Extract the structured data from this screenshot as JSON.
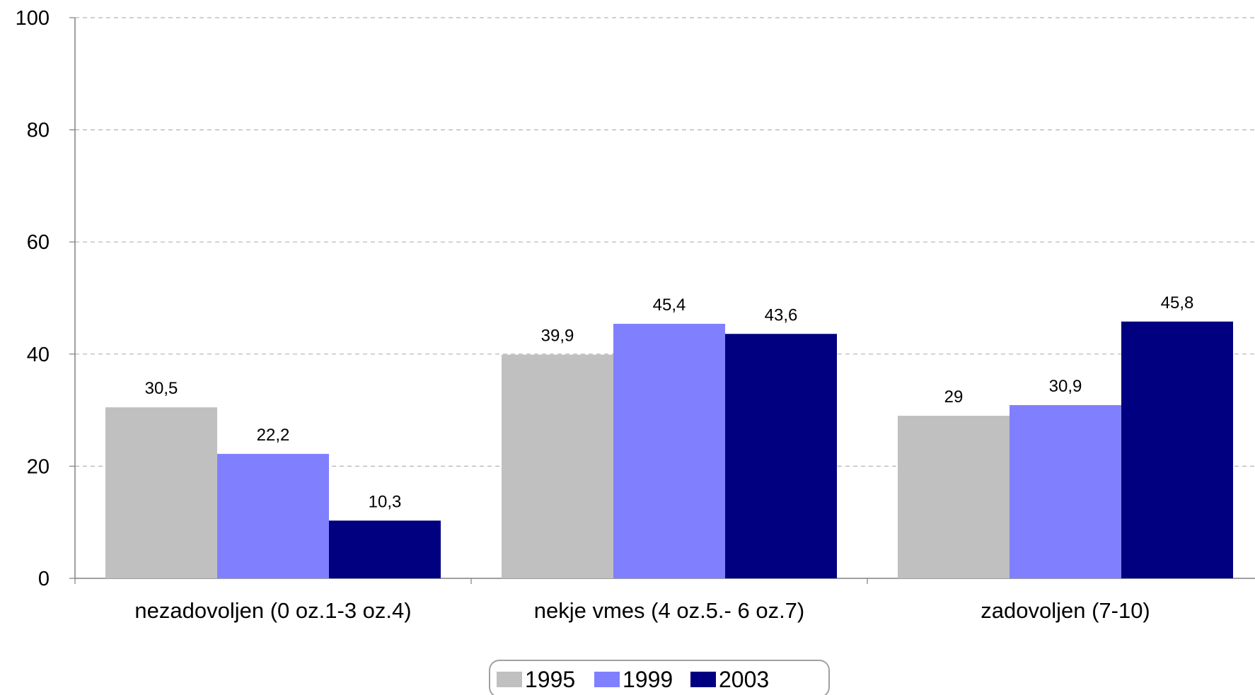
{
  "chart_data": {
    "type": "bar",
    "categories": [
      "nezadovoljen (0 oz.1-3 oz.4)",
      "nekje vmes (4 oz.5.- 6 oz.7)",
      "zadovoljen (7-10)"
    ],
    "series": [
      {
        "name": "1995",
        "values": [
          30.5,
          39.9,
          29
        ],
        "labels": [
          "30,5",
          "39,9",
          "29"
        ],
        "color": "#c0c0c0"
      },
      {
        "name": "1999",
        "values": [
          22.2,
          45.4,
          30.9
        ],
        "labels": [
          "22,2",
          "45,4",
          "30,9"
        ],
        "color": "#8080ff"
      },
      {
        "name": "2003",
        "values": [
          10.3,
          43.6,
          45.8
        ],
        "labels": [
          "10,3",
          "43,6",
          "45,8"
        ],
        "color": "#000080"
      }
    ],
    "ylim": [
      0,
      100
    ],
    "yticks": [
      0,
      20,
      40,
      60,
      80,
      100
    ],
    "grid": true,
    "legend_position": "bottom",
    "xlabel": "",
    "ylabel": ""
  }
}
